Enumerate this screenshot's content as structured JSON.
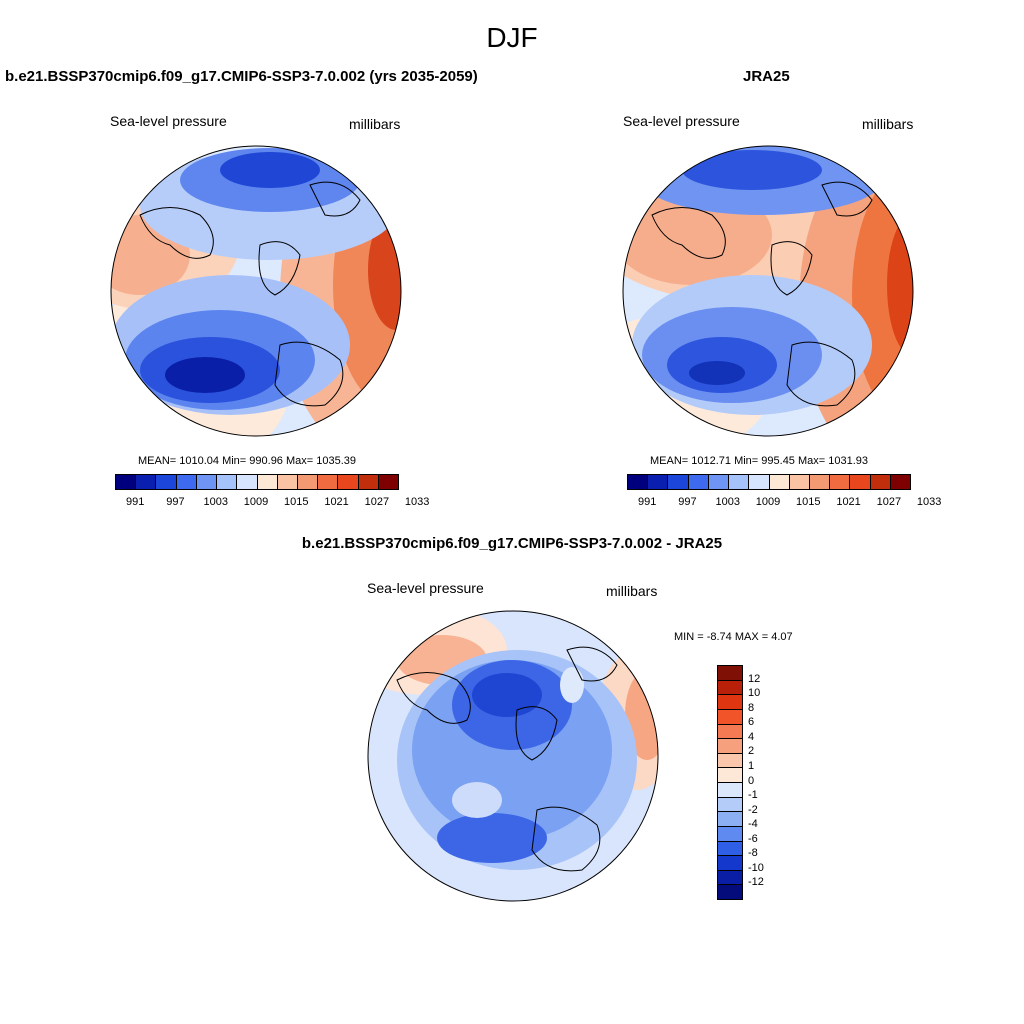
{
  "figure": {
    "season": "DJF"
  },
  "panels": {
    "model": {
      "title": "b.e21.BSSP370cmip6.f09_g17.CMIP6-SSP3-7.0.002 (yrs 2035-2059)",
      "variable": "Sea-level pressure",
      "units": "millibars",
      "stats": "MEAN= 1010.04  Min= 990.96  Max= 1035.39"
    },
    "obs": {
      "title": "JRA25",
      "variable": "Sea-level pressure",
      "units": "millibars",
      "stats": "MEAN= 1012.71  Min= 995.45  Max= 1031.93"
    },
    "diff": {
      "title": "b.e21.BSSP370cmip6.f09_g17.CMIP6-SSP3-7.0.002 - JRA25",
      "variable": "Sea-level pressure",
      "units": "millibars",
      "stats": "MIN =  -8.74 MAX =   4.07"
    }
  },
  "colorbars": {
    "abs": {
      "colors": [
        "#00007f",
        "#0a1fb0",
        "#1b46d9",
        "#3e6af0",
        "#6e95f4",
        "#a6c2fa",
        "#d6e5fd",
        "#fde8d6",
        "#fac3a4",
        "#f39a72",
        "#f06c40",
        "#e8461d",
        "#c12e0c",
        "#7f0000"
      ],
      "tick_labels": [
        "991",
        "997",
        "1003",
        "1009",
        "1015",
        "1021",
        "1027",
        "1033"
      ]
    },
    "diff": {
      "colors": [
        "#7f1005",
        "#b8200a",
        "#df3510",
        "#f2542a",
        "#f37a52",
        "#f6a07e",
        "#fac7ad",
        "#fde8d8",
        "#dbe7fb",
        "#b3ccf8",
        "#8caff4",
        "#5f8af0",
        "#2f5fe6",
        "#1438cc",
        "#0a1da5",
        "#030c7a"
      ],
      "tick_labels": [
        "12",
        "10",
        "8",
        "6",
        "4",
        "2",
        "1",
        "0",
        "-1",
        "-2",
        "-4",
        "-6",
        "-8",
        "-10",
        "-12"
      ]
    }
  },
  "icons": {
    "map_projection": "north-polar-stereographic",
    "coastlines": "black"
  }
}
